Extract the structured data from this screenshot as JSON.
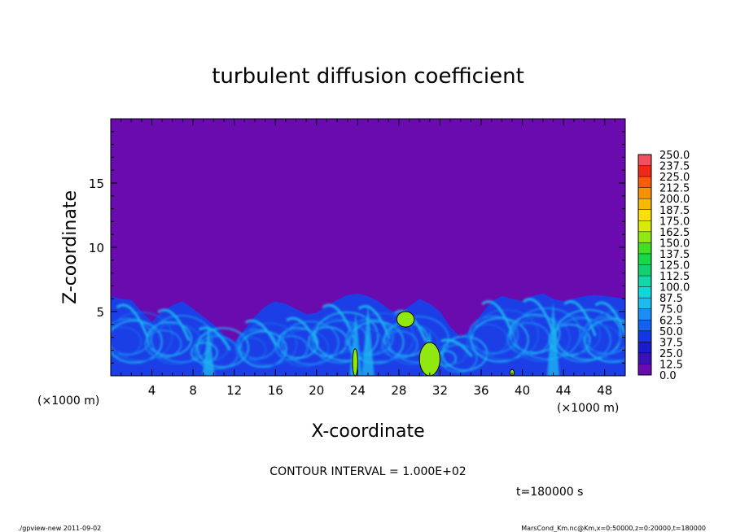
{
  "chart_data": {
    "type": "heatmap",
    "title": "turbulent diffusion coefficient",
    "xlabel": "X-coordinate",
    "ylabel": "Z-coordinate",
    "x_unit": "(×1000 m)",
    "y_unit": "(×1000 m)",
    "xlim": [
      0,
      50
    ],
    "ylim": [
      0,
      20
    ],
    "xticks": [
      4,
      8,
      12,
      16,
      20,
      24,
      28,
      32,
      36,
      40,
      44,
      48
    ],
    "yticks": [
      5,
      10,
      15
    ],
    "contour_interval": "CONTOUR INTERVAL = 1.000E+02",
    "time_label": "t=180000 s",
    "colorbar": {
      "levels": [
        "0.0",
        "12.5",
        "25.0",
        "37.5",
        "50.0",
        "62.5",
        "75.0",
        "87.5",
        "100.0",
        "112.5",
        "125.0",
        "137.5",
        "150.0",
        "162.5",
        "175.0",
        "187.5",
        "200.0",
        "212.5",
        "225.0",
        "237.5",
        "250.0"
      ],
      "colors": [
        "#6a0bb0",
        "#3a10b8",
        "#1a1ad0",
        "#1236e6",
        "#1460f0",
        "#1a8ef5",
        "#1cbcf0",
        "#10d8d8",
        "#10d8a8",
        "#10d070",
        "#18d848",
        "#40e020",
        "#90e810",
        "#d8ec08",
        "#f8e008",
        "#f8b808",
        "#f89008",
        "#f85c08",
        "#f02818",
        "#f05060",
        "#f890a0"
      ]
    },
    "background_value": "0.0",
    "background_color": "#6a0bb0",
    "turbulent_layer_top_km": [
      6.2,
      6.0,
      5.9,
      5.0,
      4.2,
      5.0,
      5.5,
      5.8,
      5.2,
      4.6,
      4.0,
      3.2,
      2.6,
      3.6,
      4.6,
      5.4,
      5.8,
      5.6,
      5.2,
      4.8,
      4.9,
      5.4,
      5.9,
      6.3,
      6.4,
      6.2,
      5.8,
      5.2,
      4.8,
      5.4,
      6.0,
      5.6,
      5.0,
      3.8,
      3.0,
      3.6,
      4.8,
      5.8,
      6.2,
      6.0,
      5.8,
      6.2,
      6.4,
      6.0,
      5.8,
      6.0,
      6.2,
      6.3,
      6.2,
      6.1,
      6.0
    ],
    "high_value_regions": [
      {
        "x_range": [
          23.5,
          24.0
        ],
        "z_range": [
          0,
          2.1
        ]
      },
      {
        "x_range": [
          30.0,
          32.0
        ],
        "z_range": [
          0,
          2.6
        ]
      },
      {
        "x_range": [
          27.8,
          29.5
        ],
        "z_range": [
          3.8,
          5.0
        ]
      },
      {
        "x_range": [
          38.8,
          39.2
        ],
        "z_range": [
          0,
          0.5
        ]
      }
    ]
  },
  "footer": {
    "left": "./gpview-new   2011-09-02",
    "right": "MarsCond_Km.nc@Km,x=0:50000,z=0:20000,t=180000"
  }
}
